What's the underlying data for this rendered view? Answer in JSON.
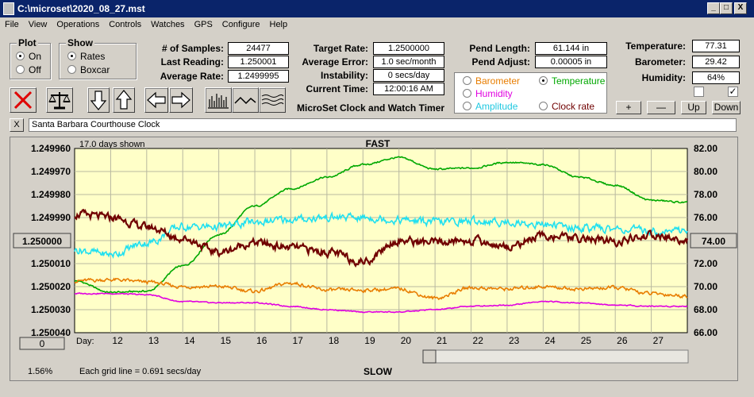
{
  "window": {
    "title": "C:\\microset\\2020_08_27.mst",
    "minimize": "_",
    "maximize": "□",
    "close": "X"
  },
  "menu": [
    "File",
    "View",
    "Operations",
    "Controls",
    "Watches",
    "GPS",
    "Configure",
    "Help"
  ],
  "plot_group": {
    "title": "Plot",
    "on": "On",
    "off": "Off",
    "selected": "On"
  },
  "show_group": {
    "title": "Show",
    "rates": "Rates",
    "boxcar": "Boxcar",
    "selected": "Rates"
  },
  "stats": {
    "samples_label": "# of Samples:",
    "samples": "24477",
    "last_reading_label": "Last Reading:",
    "last_reading": "1.250001",
    "average_rate_label": "Average Rate:",
    "average_rate": "1.2499995",
    "target_rate_label": "Target Rate:",
    "target_rate": "1.2500000",
    "average_error_label": "Average Error:",
    "average_error": "1.0 sec/month",
    "instability_label": "Instability:",
    "instability": "0 secs/day",
    "current_time_label": "Current Time:",
    "current_time": "12:00:16 AM",
    "pend_length_label": "Pend Length:",
    "pend_length": "61.144 in",
    "pend_adjust_label": "Pend Adjust:",
    "pend_adjust": "0.00005 in",
    "temperature_label": "Temperature:",
    "temperature": "77.31",
    "barometer_label": "Barometer:",
    "barometer": "29.42",
    "humidity_label": "Humidity:",
    "humidity": "64%"
  },
  "app_name": "MicroSet Clock and Watch Timer",
  "overlay_select": {
    "barometer": "Barometer",
    "temperature": "Temperature",
    "humidity": "Humidity",
    "amplitude": "Amplitude",
    "clock_rate": "Clock rate",
    "selected": "Temperature"
  },
  "colors": {
    "barometer": "#e87d00",
    "temperature": "#00a800",
    "humidity": "#e000e0",
    "amplitude": "#20e0f0",
    "clock_rate": "#700000",
    "plot_bg": "#ffffc8"
  },
  "scale_buttons": {
    "plus": "+",
    "minus": "—",
    "up": "Up",
    "down": "Down"
  },
  "checkboxes": [
    {
      "checked": false
    },
    {
      "checked": true,
      "mark": "✓"
    }
  ],
  "clock_name": {
    "close": "X",
    "value": "Santa Barbara Courthouse Clock"
  },
  "toolbar_icons": [
    "stop-icon",
    "balance-icon",
    "arrow-down-icon",
    "arrow-up-icon",
    "arrow-left-icon",
    "arrow-right-icon",
    "histogram-icon",
    "wave-icon",
    "ripple-icon"
  ],
  "chart_data": {
    "type": "line",
    "header_left": "17.0 days shown",
    "header_center": "FAST",
    "footer_center": "SLOW",
    "footer_left": "Each grid line = 0.691 secs/day",
    "footer_corner": "1.56%",
    "left_center_button": "1.250000",
    "right_center_button": "74.00",
    "bottom_left_button": "0",
    "x_label": "Day:",
    "x": [
      11,
      12,
      13,
      14,
      15,
      16,
      17,
      18,
      19,
      20,
      21,
      22,
      23,
      24,
      25,
      26,
      27,
      28
    ],
    "x_ticks": [
      "12",
      "13",
      "14",
      "15",
      "16",
      "17",
      "18",
      "19",
      "20",
      "21",
      "22",
      "23",
      "24",
      "25",
      "26",
      "27"
    ],
    "x_range": [
      11,
      28
    ],
    "y_left_ticks": [
      "1.249960",
      "1.249970",
      "1.249980",
      "1.249990",
      "1.250010",
      "1.250020",
      "1.250030",
      "1.250040"
    ],
    "y_left_range": [
      1.24996,
      1.25004
    ],
    "y_right_ticks": [
      "82.00",
      "80.00",
      "78.00",
      "76.00",
      "72.00",
      "70.00",
      "68.00",
      "66.00"
    ],
    "y_right_range": [
      66,
      82
    ],
    "grid": true,
    "series": [
      {
        "name": "Temperature",
        "color": "#00a800",
        "values": [
          70.5,
          69.5,
          69.6,
          71.8,
          74.5,
          77.0,
          78.5,
          79.5,
          80.6,
          81.2,
          80.2,
          80.3,
          80.8,
          80.6,
          79.5,
          78.8,
          77.5,
          77.3
        ]
      },
      {
        "name": "Barometer",
        "color": "#e87d00",
        "values": [
          70.5,
          70.6,
          70.4,
          70.0,
          70.0,
          69.6,
          70.3,
          69.7,
          69.7,
          69.8,
          69.0,
          69.9,
          69.8,
          70.0,
          69.8,
          69.9,
          69.4,
          69.2
        ]
      },
      {
        "name": "Humidity",
        "color": "#e000e0",
        "values": [
          69.4,
          69.4,
          69.3,
          68.7,
          68.6,
          68.6,
          68.3,
          68.0,
          67.8,
          67.8,
          68.0,
          68.3,
          68.4,
          68.7,
          68.6,
          68.4,
          68.3,
          68.3
        ]
      },
      {
        "name": "Amplitude",
        "color": "#20e0f0",
        "values": [
          73.2,
          72.8,
          73.8,
          75.2,
          75.2,
          75.6,
          75.8,
          76.0,
          76.0,
          75.8,
          75.6,
          75.7,
          75.6,
          75.4,
          75.1,
          75.0,
          74.8,
          74.9
        ]
      },
      {
        "name": "Clock rate",
        "color": "#700000",
        "values": [
          76.3,
          76.0,
          75.2,
          74.2,
          73.0,
          73.8,
          73.4,
          73.0,
          72.2,
          74.0,
          73.8,
          74.0,
          73.5,
          74.4,
          74.2,
          73.9,
          74.4,
          74.0
        ]
      }
    ]
  }
}
